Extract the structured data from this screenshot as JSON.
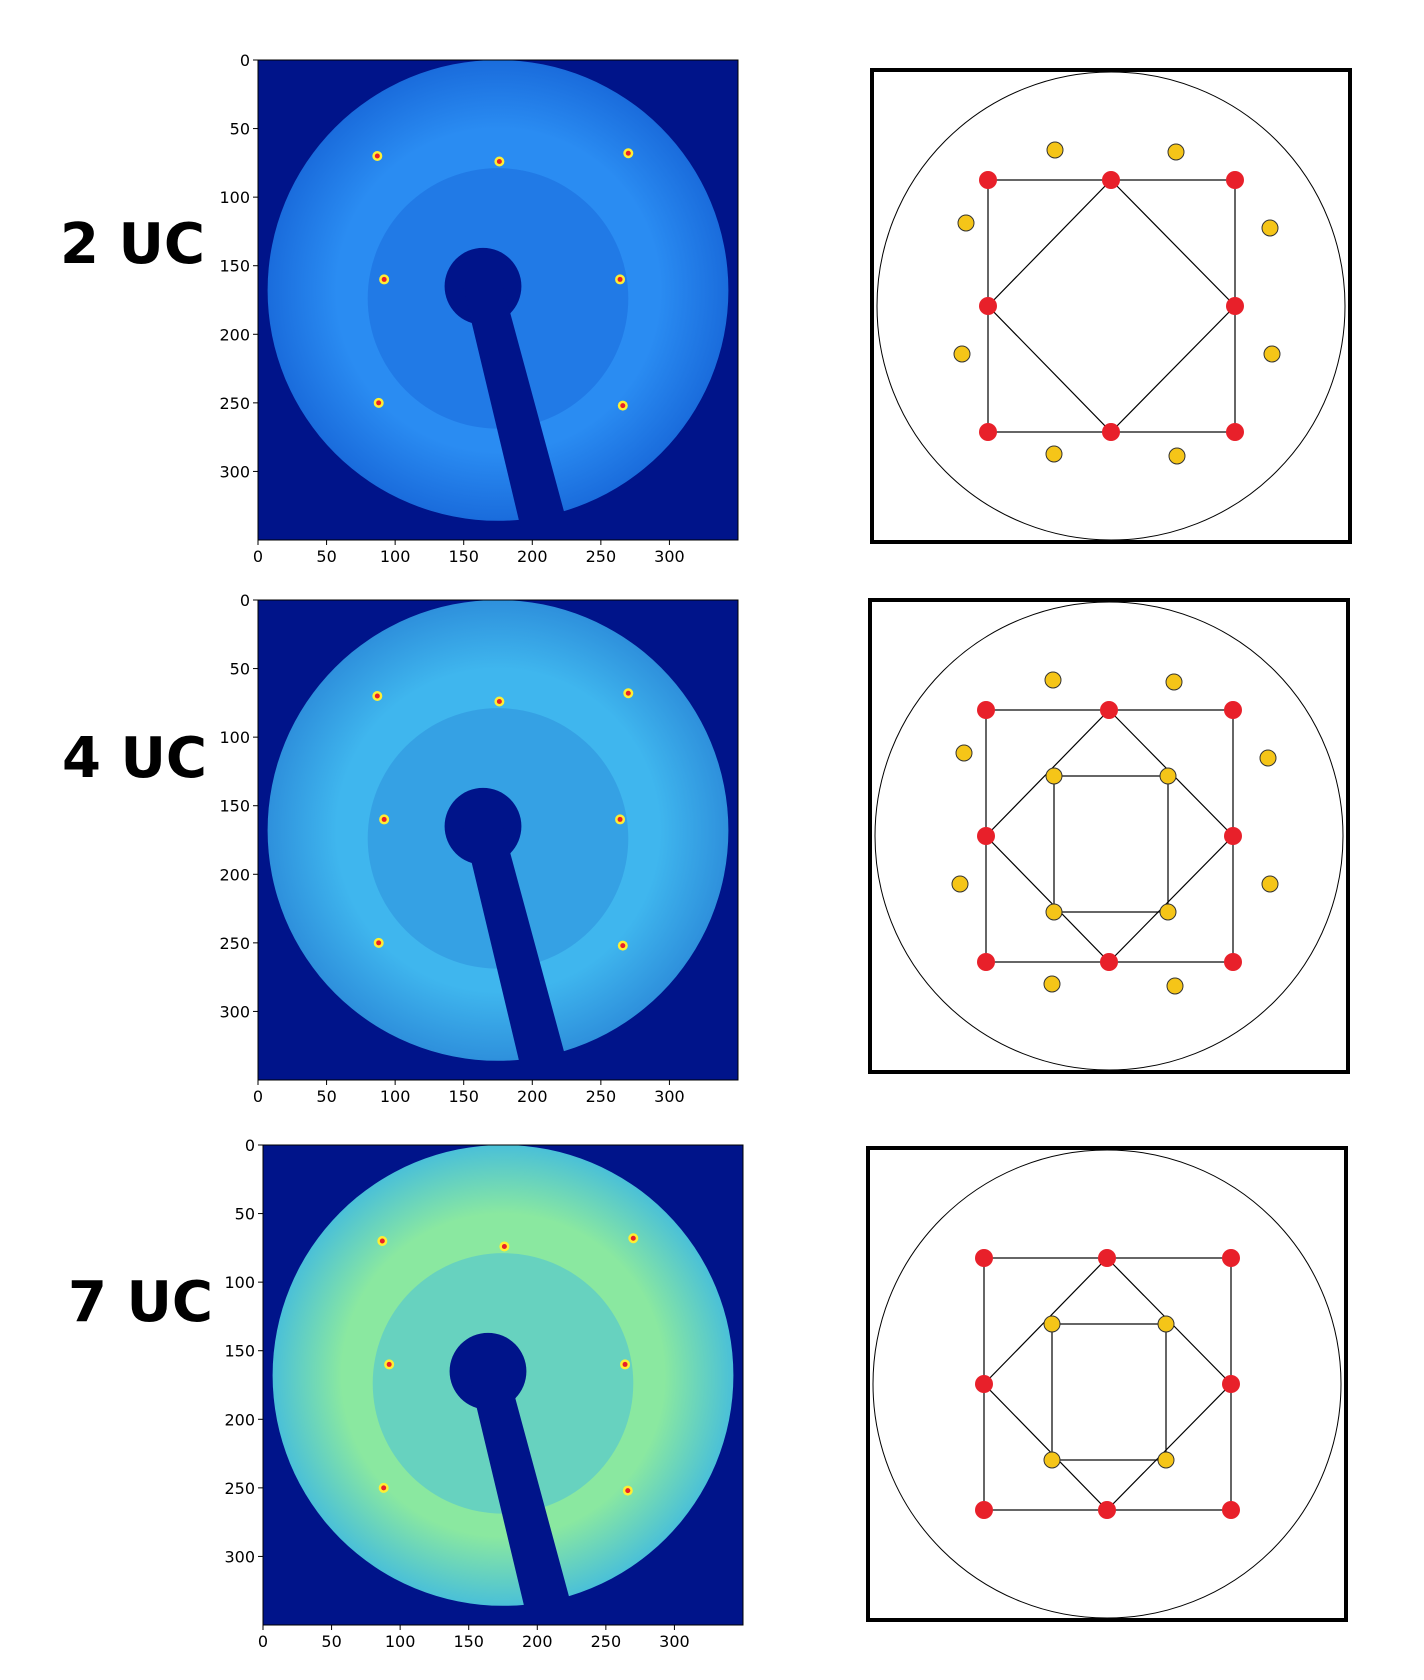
{
  "rows": [
    {
      "label": "2 UC",
      "x_ticks": [
        "0",
        "50",
        "100",
        "150",
        "200",
        "250",
        "300"
      ],
      "y_ticks": [
        "0",
        "50",
        "100",
        "150",
        "200",
        "250",
        "300"
      ],
      "inner_square": false,
      "yellow_outer": true,
      "yellow_inner": false,
      "bg_color": "#2a8cf2",
      "ring_color": "#1a6cdc"
    },
    {
      "label": "4 UC",
      "x_ticks": [
        "0",
        "50",
        "100",
        "150",
        "200",
        "250",
        "300"
      ],
      "y_ticks": [
        "0",
        "50",
        "100",
        "150",
        "200",
        "250",
        "300"
      ],
      "inner_square": true,
      "yellow_outer": true,
      "yellow_inner": true,
      "bg_color": "#3fb6ee",
      "ring_color": "#2e90dc"
    },
    {
      "label": "7 UC",
      "x_ticks": [
        "0",
        "50",
        "100",
        "150",
        "200",
        "250",
        "300"
      ],
      "y_ticks": [
        "0",
        "50",
        "100",
        "150",
        "200",
        "250",
        "300"
      ],
      "inner_square": true,
      "yellow_outer": false,
      "yellow_inner": true,
      "bg_color": "#8ae8a0",
      "ring_color": "#4ac0d8"
    }
  ],
  "colors": {
    "red_spot": "#e8202a",
    "yellow_spot": "#f5c518",
    "field": "#00148a"
  }
}
